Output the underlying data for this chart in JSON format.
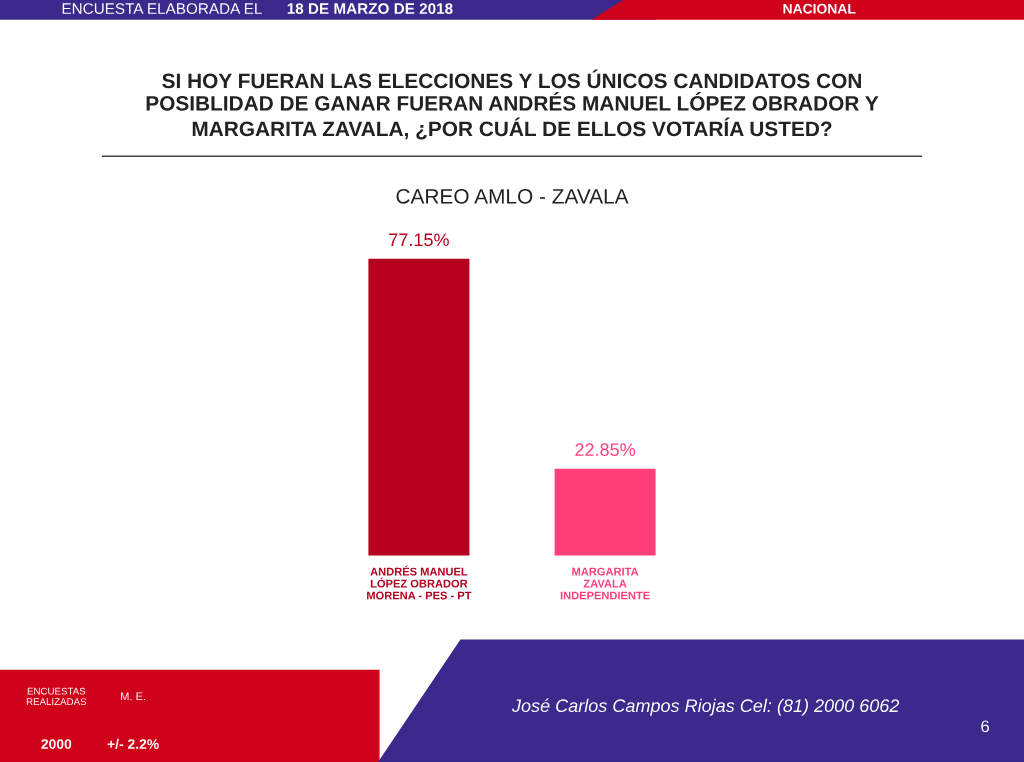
{
  "chart_data": {
    "type": "bar",
    "title": "SI HOY FUERAN LAS ELECCIONES Y LOS ÚNICOS CANDIDATOS CON\nPOSIBLIDAD DE GANAR FUERAN ANDRÉS MANUEL LÓPEZ OBRADOR Y\nMARGARITA ZAVALA, ¿POR CUÁL DE ELLOS VOTARÍA USTED?",
    "subtitle": "CAREO AMLO - ZAVALA",
    "categories": [
      "ANDRÉS MANUEL\nLÓPEZ OBRADOR\nMORENA - PES - PT",
      "MARGARITA\nZAVALA\nINDEPENDIENTE"
    ],
    "values": [
      77.15,
      22.85
    ],
    "colors": [
      "#b5001f",
      "#ff3f7a"
    ],
    "value_labels": [
      "77.15%",
      "22.85%"
    ],
    "annotations": [
      "ENCUESTA ELABORADA EL",
      "18 DE MARZO DE 2018",
      "NACIONAL",
      "ENCUESTAS\nREALIZADAS",
      "M. E.",
      "2000",
      "+/- 2.2%",
      "José Carlos Campos Riojas Cel: (81) 2000 6062",
      "6"
    ],
    "grid": false,
    "legend": false
  }
}
